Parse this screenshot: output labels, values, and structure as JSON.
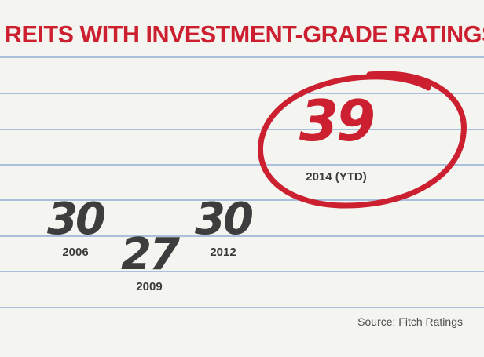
{
  "title": "REITS WITH INVESTMENT-GRADE RATINGS",
  "source": "Source: Fitch Ratings",
  "colors": {
    "title": "#cc1f2f",
    "highlight": "#cc1f2f",
    "value": "#3d3d3d",
    "ruled_lines": "#a9bfdd",
    "background": "#f4f4f1"
  },
  "chart_data": {
    "type": "scatter",
    "title": "REITS WITH INVESTMENT-GRADE RATINGS",
    "categories": [
      "2006",
      "2009",
      "2012",
      "2014 (YTD)"
    ],
    "values": [
      30,
      27,
      30,
      39
    ],
    "highlighted": "2014 (YTD)",
    "source": "Source: Fitch Ratings"
  }
}
